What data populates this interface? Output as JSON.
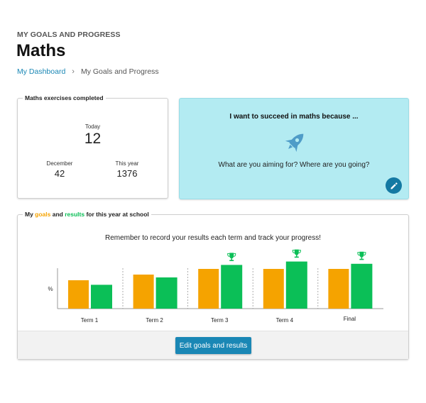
{
  "header": {
    "eyebrow": "MY GOALS AND PROGRESS",
    "title": "Maths"
  },
  "breadcrumb": {
    "home": "My Dashboard",
    "separator": "›",
    "current": "My Goals and Progress"
  },
  "exercises": {
    "legend": "Maths exercises completed",
    "today_label": "Today",
    "today_value": "12",
    "month_label": "December",
    "month_value": "42",
    "year_label": "This year",
    "year_value": "1376"
  },
  "aim": {
    "title": "I want to succeed in maths because ...",
    "question": "What are you aiming for? Where are you going?",
    "icon": "rocket-icon",
    "edit_icon": "pencil-icon"
  },
  "goals": {
    "legend_prefix": "My ",
    "legend_goals": "goals",
    "legend_and": " and ",
    "legend_results": "results",
    "legend_suffix": " for this year at school",
    "instruction": "Remember to record your results each term and track your progress!",
    "edit_button": "Edit goals and results"
  },
  "colors": {
    "goal": "#f5a300",
    "result": "#0bbf57",
    "accent": "#1a87b5",
    "trophy": "#0bbf57"
  },
  "chart_data": {
    "type": "bar",
    "categories": [
      "Term 1",
      "Term 2",
      "Term 3",
      "Term 4",
      "Final"
    ],
    "ylabel": "%",
    "ylim": [
      0,
      100
    ],
    "series": [
      {
        "name": "goals",
        "values": [
          50,
          60,
          70,
          70,
          70
        ]
      },
      {
        "name": "results",
        "values": [
          42,
          55,
          77,
          83,
          79
        ]
      }
    ],
    "trophies": [
      false,
      false,
      true,
      true,
      true
    ],
    "grid": "dashed dividers between terms",
    "legend": "none"
  }
}
